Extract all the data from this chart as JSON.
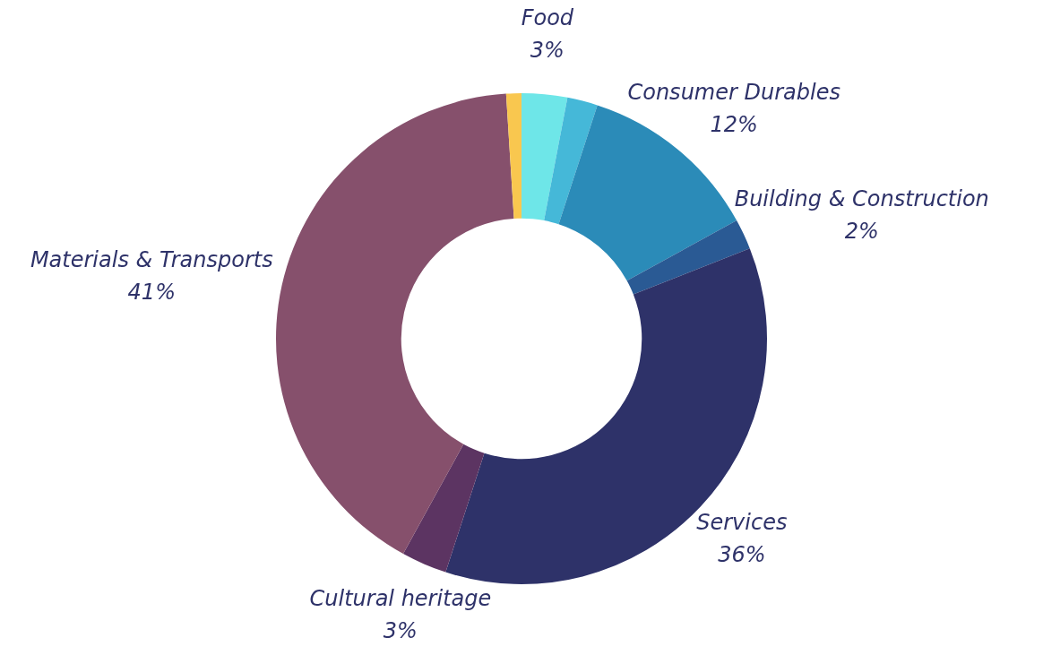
{
  "chart_data": {
    "type": "donut",
    "categories": [
      "Food",
      null,
      "Consumer Durables",
      "Building & Construction",
      "Services",
      "Cultural heritage",
      "Materials & Transports",
      null
    ],
    "values": [
      3,
      2,
      12,
      2,
      36,
      3,
      41,
      1
    ],
    "value_labels": [
      "3%",
      null,
      "12%",
      "2%",
      "36%",
      "3%",
      "41%",
      null
    ],
    "colors": [
      "#6ee6e8",
      "#45b8d8",
      "#2b8bb8",
      "#2a5a94",
      "#2e3269",
      "#5c3462",
      "#86506c",
      "#f9c74f"
    ],
    "legend": false
  }
}
